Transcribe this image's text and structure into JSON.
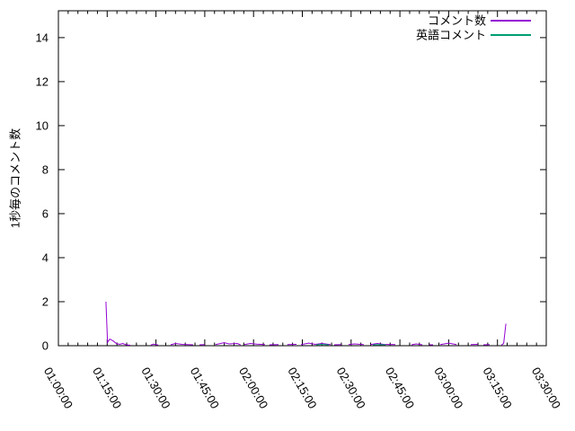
{
  "chart_data": {
    "type": "line",
    "title": "",
    "xlabel": "",
    "ylabel": "1秒毎のコメント数",
    "grid": false,
    "legend_position": "top-right-inside",
    "axis_color": "#000000",
    "background_color": "#ffffff",
    "x_unit": "time (hh:mm:ss)",
    "x_range_minutes": [
      0,
      150
    ],
    "x_major_step_minutes": 15,
    "x_minor_step_minutes": 3,
    "x_tick_labels": [
      "01:00:00",
      "01:15:00",
      "01:30:00",
      "01:45:00",
      "02:00:00",
      "02:15:00",
      "02:30:00",
      "02:45:00",
      "03:00:00",
      "03:15:00",
      "03:30:00"
    ],
    "x_tick_label_rotation_deg": 60,
    "y_ticks": [
      0,
      2,
      4,
      6,
      8,
      10,
      12,
      14
    ],
    "ylim": [
      0,
      15.22
    ],
    "series": [
      {
        "name": "コメント数",
        "color": "#9400d3",
        "segments": [
          [
            [
              14.6,
              2
            ],
            [
              15.1,
              0.15
            ],
            [
              15.8,
              0.3
            ],
            [
              16.8,
              0.22
            ],
            [
              17.8,
              0.1
            ],
            [
              18.8,
              0.06
            ],
            [
              19.8,
              0.1
            ],
            [
              20.8,
              0.04
            ],
            [
              22.1,
              0.02
            ]
          ],
          [
            [
              28.4,
              0.03
            ],
            [
              29.2,
              0.07
            ],
            [
              30.7,
              0.03
            ]
          ],
          [
            [
              34.5,
              0.04
            ],
            [
              36,
              0.1
            ],
            [
              38,
              0.06
            ],
            [
              41.4,
              0.04
            ]
          ],
          [
            [
              43.4,
              0.04
            ],
            [
              45,
              0.05
            ]
          ],
          [
            [
              48.3,
              0.05
            ],
            [
              51,
              0.14
            ],
            [
              52.5,
              0.08
            ],
            [
              55,
              0.1
            ],
            [
              56,
              0.04
            ]
          ],
          [
            [
              57.2,
              0.05
            ],
            [
              59,
              0.1
            ],
            [
              61,
              0.07
            ],
            [
              63.5,
              0.05
            ]
          ],
          [
            [
              64.9,
              0.04
            ],
            [
              67.7,
              0.05
            ]
          ],
          [
            [
              70.4,
              0.05
            ],
            [
              73.2,
              0.06
            ]
          ],
          [
            [
              74.6,
              0.05
            ],
            [
              77,
              0.12
            ],
            [
              79,
              0.06
            ],
            [
              81,
              0.1
            ],
            [
              83.7,
              0.05
            ]
          ],
          [
            [
              84.8,
              0.04
            ],
            [
              87,
              0.05
            ]
          ],
          [
            [
              89.2,
              0.05
            ],
            [
              91,
              0.08
            ],
            [
              93.9,
              0.05
            ]
          ],
          [
            [
              95.9,
              0.05
            ],
            [
              98,
              0.1
            ],
            [
              100,
              0.06
            ],
            [
              103.6,
              0.05
            ]
          ],
          [
            [
              108.6,
              0.04
            ],
            [
              110,
              0.08
            ],
            [
              111.9,
              0.04
            ]
          ],
          [
            [
              114,
              0.04
            ],
            [
              115.2,
              0.04
            ]
          ],
          [
            [
              117.4,
              0.05
            ],
            [
              120,
              0.12
            ],
            [
              122.4,
              0.05
            ]
          ],
          [
            [
              126.8,
              0.05
            ],
            [
              129,
              0.06
            ]
          ],
          [
            [
              130.7,
              0.04
            ],
            [
              132.6,
              0.05
            ]
          ],
          [
            [
              136.2,
              0.03
            ],
            [
              136.9,
              0.1
            ],
            [
              137.6,
              1.0
            ]
          ]
        ]
      },
      {
        "name": "英語コメント",
        "color": "#009e73",
        "segments": [
          [
            [
              79.3,
              0.04
            ],
            [
              81,
              0.06
            ],
            [
              83.1,
              0.04
            ]
          ],
          [
            [
              96.7,
              0.04
            ],
            [
              98.5,
              0.05
            ],
            [
              100.6,
              0.04
            ]
          ]
        ]
      }
    ]
  }
}
